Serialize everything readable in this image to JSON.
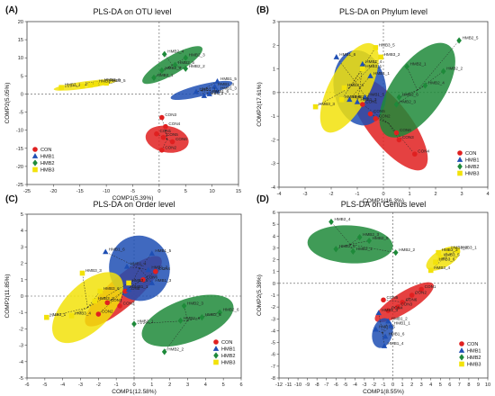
{
  "figure": {
    "colors": {
      "CON": "#e02020",
      "HMB1": "#1f4fb4",
      "HMB2": "#1e8a3a",
      "HMB3": "#f2e20a"
    },
    "panels": [
      {
        "letter": "(A)",
        "title": "PLS-DA on OTU level",
        "xlabel": "COMP1(5.39%)",
        "ylabel": "COMP2(5.05%)"
      },
      {
        "letter": "(B)",
        "title": "PLS-DA on Phylum level",
        "xlabel": "COMP1(16.3%)",
        "ylabel": "COMP2(17.61%)"
      },
      {
        "letter": "(C)",
        "title": "PLS-DA on Order level",
        "xlabel": "COMP1(12.58%)",
        "ylabel": "COMP2(11.85%)"
      },
      {
        "letter": "(D)",
        "title": "PLS-DA on Genus level",
        "xlabel": "COMP1(8.55%)",
        "ylabel": "COMP2(5.38%)"
      }
    ]
  },
  "chart_data": [
    {
      "type": "scatter",
      "title": "PLS-DA on OTU level",
      "xlabel": "COMP1(5.39%)",
      "ylabel": "COMP2(5.05%)",
      "xlim": [
        -25,
        15
      ],
      "ylim": [
        -25,
        20
      ],
      "xticks": [
        -25,
        -20,
        -15,
        -10,
        -5,
        0,
        5,
        10,
        15
      ],
      "yticks": [
        -25,
        -20,
        -15,
        -10,
        -5,
        0,
        5,
        10,
        15,
        20
      ],
      "legend": "bottom-left",
      "series": [
        {
          "name": "CON",
          "ellipse": {
            "cx": 1.5,
            "cy": -12.5,
            "rx": 2.5,
            "ry": 6.0,
            "angle": 80
          },
          "points": [
            {
              "x": 0.5,
              "y": -6.5,
              "label": "CON3"
            },
            {
              "x": 1.2,
              "y": -9.0,
              "label": "CON4"
            },
            {
              "x": -0.5,
              "y": -11.0,
              "label": "CON1"
            },
            {
              "x": 0.8,
              "y": -12.0,
              "label": "CON5"
            },
            {
              "x": 2.5,
              "y": -13.2,
              "label": "CON6"
            },
            {
              "x": 0.5,
              "y": -15.5,
              "label": "CON2"
            }
          ]
        },
        {
          "name": "HMB1",
          "ellipse": {
            "cx": 8.0,
            "cy": 1.0,
            "rx": 6.0,
            "ry": 1.6,
            "angle": 14
          },
          "points": [
            {
              "x": 11.0,
              "y": 3.5,
              "label": "HMB1_5"
            },
            {
              "x": 10.5,
              "y": 2.0,
              "label": "HMB1_4"
            },
            {
              "x": 11.0,
              "y": 0.8,
              "label": "HMB1_3"
            },
            {
              "x": 7.0,
              "y": 0.6,
              "label": "HMB1_1"
            },
            {
              "x": 8.5,
              "y": -0.5,
              "label": "HMB1_2"
            },
            {
              "x": 9.5,
              "y": 0.0,
              "label": "HMB1_6"
            }
          ]
        },
        {
          "name": "HMB2",
          "ellipse": {
            "cx": 2.5,
            "cy": 8.0,
            "rx": 6.5,
            "ry": 2.5,
            "angle": 30
          },
          "points": [
            {
              "x": 1.0,
              "y": 11.0,
              "label": "HMB2_4"
            },
            {
              "x": 5.0,
              "y": 10.0,
              "label": "HMB2_3"
            },
            {
              "x": 3.0,
              "y": 8.0,
              "label": "HMB2_5"
            },
            {
              "x": 5.0,
              "y": 7.0,
              "label": "HMB2_2"
            },
            {
              "x": 0.5,
              "y": 6.5,
              "label": "HMB2_6"
            },
            {
              "x": -1.0,
              "y": 4.5,
              "label": "HMB2_1"
            }
          ]
        },
        {
          "name": "HMB3",
          "ellipse": {
            "cx": -14.0,
            "cy": 2.5,
            "rx": 6.0,
            "ry": 1.0,
            "angle": 8
          },
          "points": [
            {
              "x": -18.5,
              "y": 1.8,
              "label": "HMB3_1"
            },
            {
              "x": -14.5,
              "y": 2.2,
              "label": "HMB3_2"
            },
            {
              "x": -13.0,
              "y": 2.5,
              "label": "HMB3_4"
            },
            {
              "x": -11.0,
              "y": 3.2,
              "label": "HMB3_6"
            },
            {
              "x": -10.0,
              "y": 3.0,
              "label": "HMB3_5"
            },
            {
              "x": -12.0,
              "y": 2.8,
              "label": "HMB3_3"
            }
          ]
        }
      ]
    },
    {
      "type": "scatter",
      "title": "PLS-DA on Phylum level",
      "xlabel": "COMP1(16.3%)",
      "ylabel": "COMP2(17.61%)",
      "xlim": [
        -4,
        4
      ],
      "ylim": [
        -4,
        3
      ],
      "xticks": [
        -4,
        -3,
        -2,
        -1,
        0,
        1,
        2,
        3,
        4
      ],
      "yticks": [
        -4,
        -3,
        -2,
        -1,
        0,
        1,
        2,
        3
      ],
      "legend": "bottom-right",
      "series": [
        {
          "name": "CON",
          "ellipse": {
            "cx": 0.2,
            "cy": -1.3,
            "rx": 2.2,
            "ry": 0.9,
            "angle": -52
          },
          "points": [
            {
              "x": -0.8,
              "y": -0.5,
              "label": "CON1"
            },
            {
              "x": -0.5,
              "y": -0.9,
              "label": "CON5"
            },
            {
              "x": -0.3,
              "y": -1.1,
              "label": "CON2"
            },
            {
              "x": 0.5,
              "y": -1.7,
              "label": "CON6"
            },
            {
              "x": 0.6,
              "y": -2.0,
              "label": "CON3"
            },
            {
              "x": 1.2,
              "y": -2.6,
              "label": "CON4"
            }
          ]
        },
        {
          "name": "HMB1",
          "ellipse": {
            "cx": -0.9,
            "cy": 0.2,
            "rx": 1.0,
            "ry": 1.6,
            "angle": 10
          },
          "points": [
            {
              "x": -1.8,
              "y": 1.5,
              "label": "HMB1_6"
            },
            {
              "x": -0.8,
              "y": 1.2,
              "label": "HMB1_4"
            },
            {
              "x": -0.5,
              "y": 0.7,
              "label": "HMB1_1"
            },
            {
              "x": -0.7,
              "y": -0.2,
              "label": "HMB1_5"
            },
            {
              "x": -1.3,
              "y": -0.3,
              "label": "HMB1_2"
            },
            {
              "x": -1.0,
              "y": -0.4,
              "label": "HMB1_3"
            }
          ]
        },
        {
          "name": "HMB2",
          "ellipse": {
            "cx": 1.3,
            "cy": 0.1,
            "rx": 2.1,
            "ry": 1.1,
            "angle": 55
          },
          "points": [
            {
              "x": 2.9,
              "y": 2.2,
              "label": "HMB2_5"
            },
            {
              "x": 2.3,
              "y": 0.9,
              "label": "HMB2_2"
            },
            {
              "x": 0.9,
              "y": 1.1,
              "label": "HMB2_1"
            },
            {
              "x": 1.6,
              "y": 0.3,
              "label": "HMB2_4"
            },
            {
              "x": 0.6,
              "y": -0.2,
              "label": "HMB2_6"
            },
            {
              "x": 0.5,
              "y": -0.5,
              "label": "HMB2_3"
            }
          ]
        },
        {
          "name": "HMB3",
          "ellipse": {
            "cx": -1.3,
            "cy": 0.2,
            "rx": 1.9,
            "ry": 0.85,
            "angle": 62
          },
          "points": [
            {
              "x": -0.3,
              "y": 1.9,
              "label": "HMB3_5"
            },
            {
              "x": -0.1,
              "y": 1.5,
              "label": "HMB3_2"
            },
            {
              "x": -0.8,
              "y": 1.0,
              "label": "HMB3_1"
            },
            {
              "x": -1.5,
              "y": 0.2,
              "label": "HMB3_4"
            },
            {
              "x": -1.6,
              "y": -0.3,
              "label": "HMB3_6"
            },
            {
              "x": -2.6,
              "y": -0.6,
              "label": "HMB3_3"
            }
          ]
        }
      ]
    },
    {
      "type": "scatter",
      "title": "PLS-DA on Order level",
      "xlabel": "COMP1(12.58%)",
      "ylabel": "COMP2(11.85%)",
      "xlim": [
        -6,
        6
      ],
      "ylim": [
        -5,
        5
      ],
      "xticks": [
        -6,
        -5,
        -4,
        -3,
        -2,
        -1,
        0,
        1,
        2,
        3,
        4,
        5,
        6
      ],
      "yticks": [
        -5,
        -4,
        -3,
        -2,
        -1,
        0,
        1,
        2,
        3,
        4,
        5
      ],
      "legend": "bottom-right",
      "series": [
        {
          "name": "CON",
          "ellipse": {
            "cx": -0.6,
            "cy": 0.3,
            "rx": 2.8,
            "ry": 0.9,
            "angle": 42
          },
          "points": [
            {
              "x": 1.2,
              "y": 1.5,
              "label": "CON4"
            },
            {
              "x": 0.5,
              "y": 1.0,
              "label": "CON6"
            },
            {
              "x": -0.5,
              "y": 0.3,
              "label": "CON5"
            },
            {
              "x": -1.5,
              "y": -0.4,
              "label": "CON1"
            },
            {
              "x": -0.8,
              "y": -0.6,
              "label": "CON3"
            },
            {
              "x": -2.0,
              "y": -1.1,
              "label": "CON2"
            }
          ]
        },
        {
          "name": "HMB1",
          "ellipse": {
            "cx": 0.3,
            "cy": 1.7,
            "rx": 1.7,
            "ry": 2.0,
            "angle": 10
          },
          "points": [
            {
              "x": -1.6,
              "y": 2.7,
              "label": "HMB1_6"
            },
            {
              "x": 1.0,
              "y": 2.6,
              "label": "HMB1_5"
            },
            {
              "x": -0.4,
              "y": 1.8,
              "label": "HMB1_4"
            },
            {
              "x": 0.8,
              "y": 1.6,
              "label": "HMB1_2"
            },
            {
              "x": 1.0,
              "y": 0.8,
              "label": "HMB1_3"
            },
            {
              "x": -0.3,
              "y": 0.4,
              "label": "HMB1_1"
            }
          ]
        },
        {
          "name": "HMB2",
          "ellipse": {
            "cx": 3.0,
            "cy": -1.5,
            "rx": 2.7,
            "ry": 1.3,
            "angle": 20
          },
          "points": [
            {
              "x": 2.8,
              "y": -0.6,
              "label": "HMB2_3"
            },
            {
              "x": 4.8,
              "y": -1.0,
              "label": "HMB2_6"
            },
            {
              "x": 3.8,
              "y": -1.3,
              "label": "HMB2_5"
            },
            {
              "x": 2.6,
              "y": -1.5,
              "label": "HMB2_4"
            },
            {
              "x": 0.0,
              "y": -1.7,
              "label": "HMB2_1"
            },
            {
              "x": 1.7,
              "y": -3.4,
              "label": "HMB2_2"
            }
          ]
        },
        {
          "name": "HMB3",
          "ellipse": {
            "cx": -2.6,
            "cy": -0.7,
            "rx": 2.5,
            "ry": 1.4,
            "angle": 45
          },
          "points": [
            {
              "x": -2.9,
              "y": 1.4,
              "label": "HMB3_3"
            },
            {
              "x": -0.3,
              "y": 0.8,
              "label": "HMB3_5"
            },
            {
              "x": -1.9,
              "y": 0.3,
              "label": "HMB3_6"
            },
            {
              "x": -2.2,
              "y": -0.3,
              "label": "HMB3_2"
            },
            {
              "x": -3.5,
              "y": -1.2,
              "label": "HMB3_4"
            },
            {
              "x": -4.9,
              "y": -1.3,
              "label": "HMB3_1"
            }
          ]
        }
      ]
    },
    {
      "type": "scatter",
      "title": "PLS-DA on Genus level",
      "xlabel": "COMP1(8.55%)",
      "ylabel": "COMP2(5.38%)",
      "xlim": [
        -12,
        10
      ],
      "ylim": [
        -8,
        6
      ],
      "xticks": [
        -12,
        -11,
        -10,
        -9,
        -8,
        -7,
        -6,
        -5,
        -4,
        -3,
        -2,
        -1,
        0,
        1,
        2,
        3,
        4,
        5,
        6,
        7,
        8,
        9,
        10
      ],
      "yticks": [
        -8,
        -7,
        -6,
        -5,
        -4,
        -3,
        -2,
        -1,
        0,
        1,
        2,
        3,
        4,
        5,
        6
      ],
      "legend": "bottom-right",
      "series": [
        {
          "name": "CON",
          "ellipse": {
            "cx": 1.2,
            "cy": -1.6,
            "rx": 3.6,
            "ry": 0.85,
            "angle": 32
          },
          "points": [
            {
              "x": 3.0,
              "y": -0.5,
              "label": "CON1"
            },
            {
              "x": 2.0,
              "y": -1.0,
              "label": "CON2"
            },
            {
              "x": 1.0,
              "y": -1.6,
              "label": "CON6"
            },
            {
              "x": 0.5,
              "y": -2.0,
              "label": "CON3"
            },
            {
              "x": -0.5,
              "y": -2.3,
              "label": "CON4"
            },
            {
              "x": -1.0,
              "y": -1.4,
              "label": "CON5"
            }
          ]
        },
        {
          "name": "HMB1",
          "ellipse": {
            "cx": -1.1,
            "cy": -4.2,
            "rx": 1.6,
            "ry": 0.85,
            "angle": 75
          },
          "points": [
            {
              "x": -1.5,
              "y": -2.5,
              "label": "HMB1_3"
            },
            {
              "x": -0.5,
              "y": -3.2,
              "label": "HMB1_2"
            },
            {
              "x": -1.8,
              "y": -3.9,
              "label": "HMB1_5"
            },
            {
              "x": -0.8,
              "y": -4.5,
              "label": "HMB1_6"
            },
            {
              "x": -0.9,
              "y": -5.3,
              "label": "HMB1_4"
            },
            {
              "x": -0.2,
              "y": -3.6,
              "label": "HMB1_1"
            }
          ]
        },
        {
          "name": "HMB2",
          "ellipse": {
            "cx": -4.5,
            "cy": 3.3,
            "rx": 4.5,
            "ry": 1.6,
            "angle": -3
          },
          "points": [
            {
              "x": -6.5,
              "y": 5.2,
              "label": "HMB2_4"
            },
            {
              "x": -3.5,
              "y": 3.9,
              "label": "HMB2_3"
            },
            {
              "x": -2.5,
              "y": 3.6,
              "label": "HMB2_5"
            },
            {
              "x": -6.0,
              "y": 2.9,
              "label": "HMB2_6"
            },
            {
              "x": -4.2,
              "y": 2.7,
              "label": "HMB2_1"
            },
            {
              "x": 0.3,
              "y": 2.6,
              "label": "HMB2_2"
            }
          ]
        },
        {
          "name": "HMB3",
          "ellipse": {
            "cx": 5.3,
            "cy": 2.1,
            "rx": 2.0,
            "ry": 0.75,
            "angle": 30
          },
          "points": [
            {
              "x": 6.8,
              "y": 2.8,
              "label": "HMB3_1"
            },
            {
              "x": 5.8,
              "y": 2.8,
              "label": "HMB3_2"
            },
            {
              "x": 4.8,
              "y": 2.6,
              "label": "HMB3_3"
            },
            {
              "x": 5.0,
              "y": 2.2,
              "label": "HMB3_5"
            },
            {
              "x": 4.5,
              "y": 1.8,
              "label": "HMB3_6"
            },
            {
              "x": 4.0,
              "y": 1.1,
              "label": "HMB3_4"
            }
          ]
        }
      ]
    }
  ]
}
